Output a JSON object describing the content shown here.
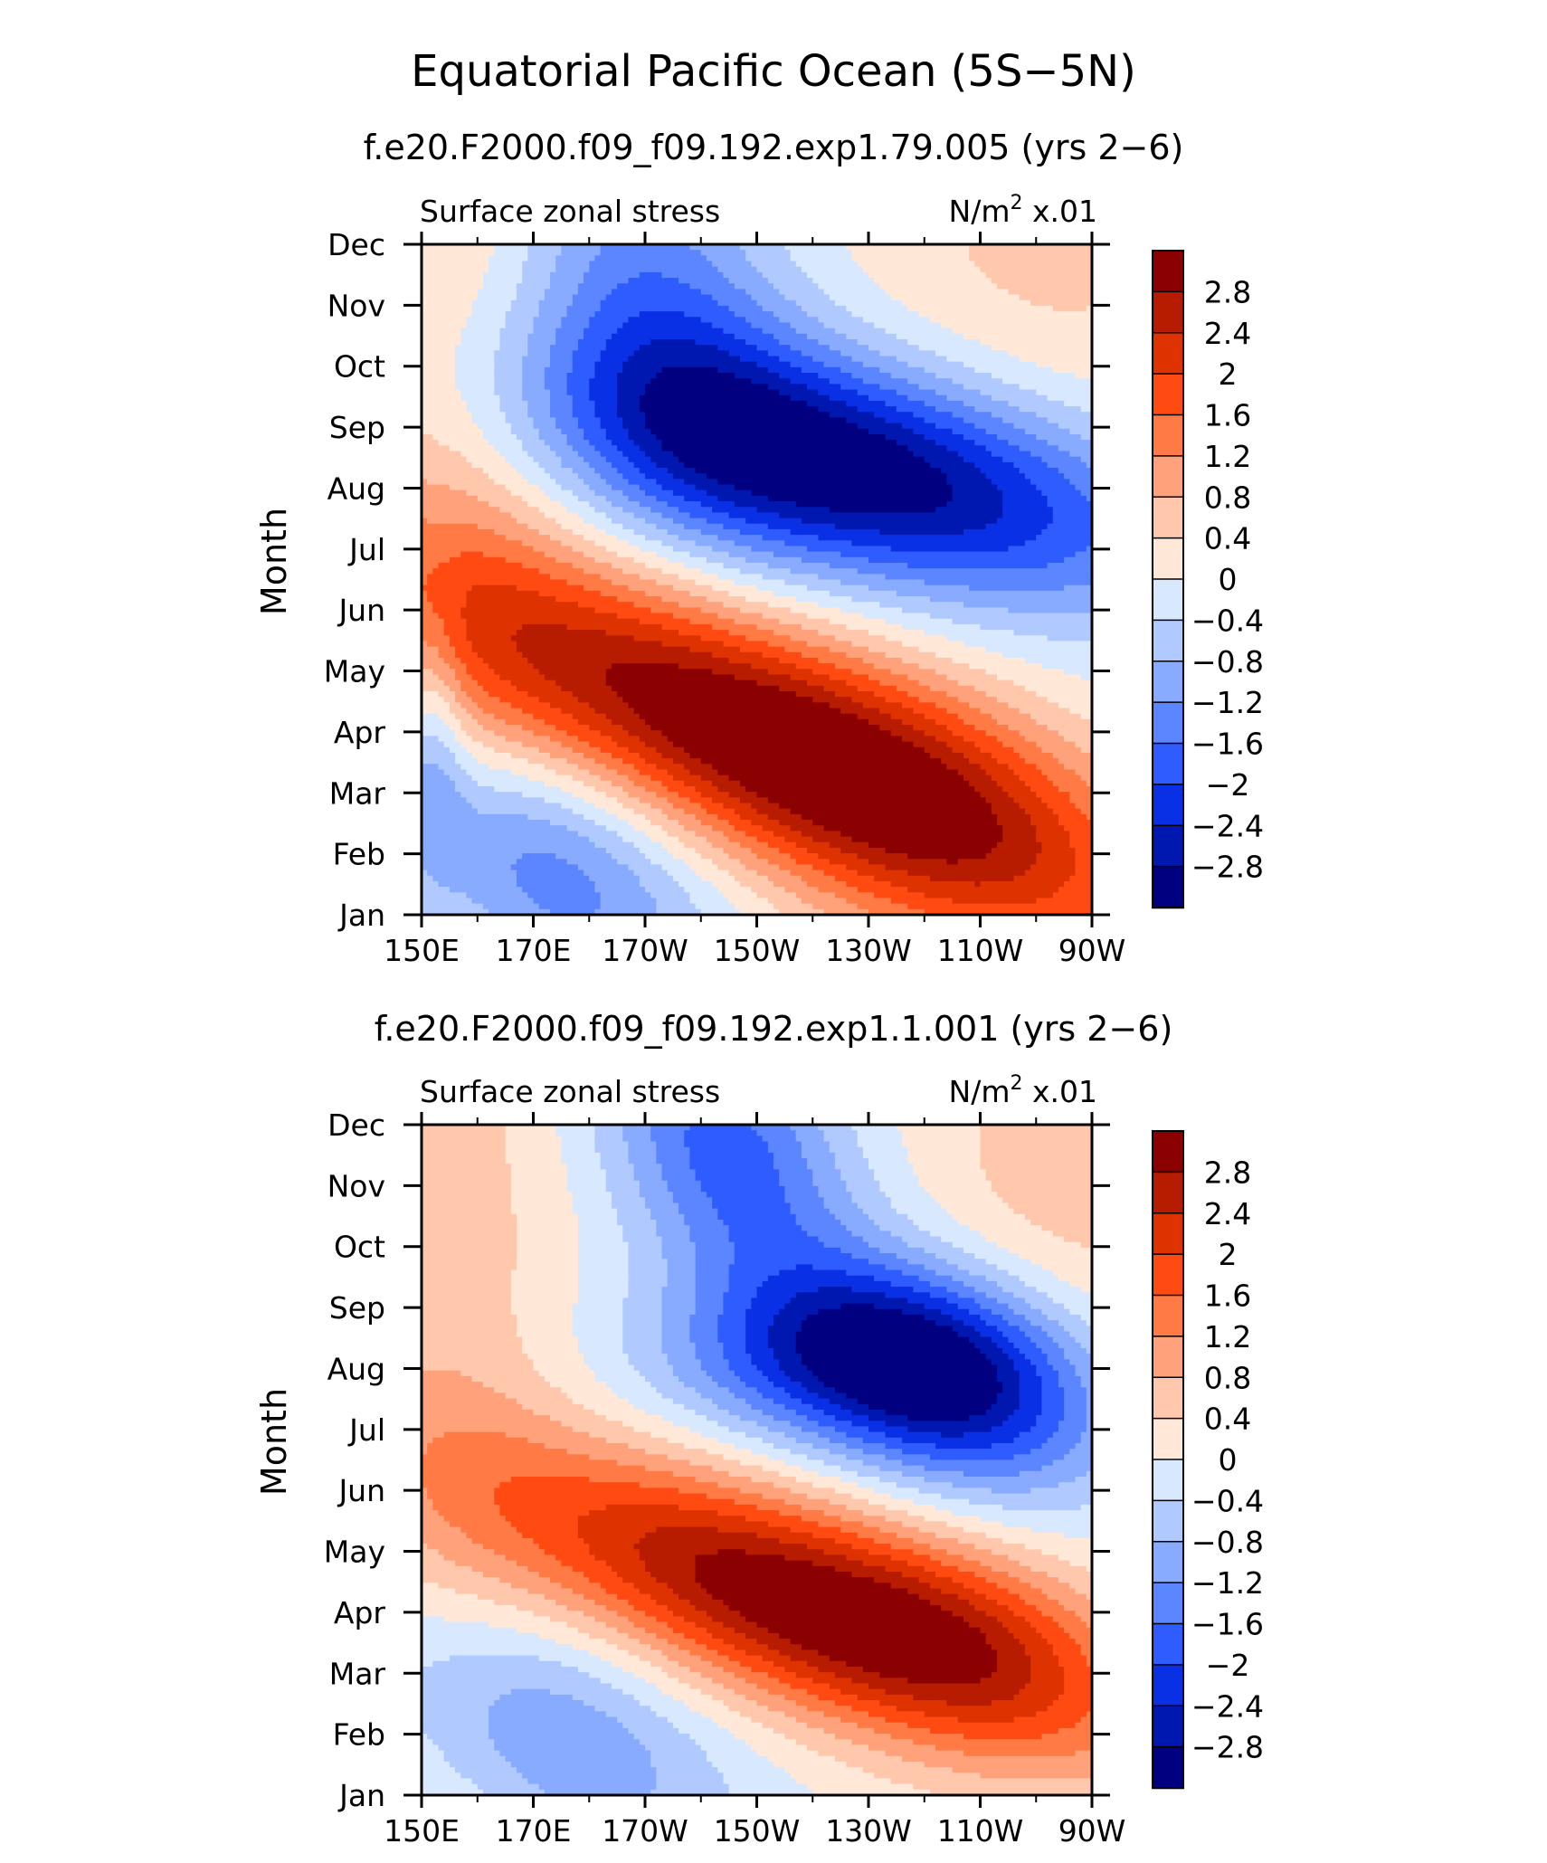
{
  "title": "Equatorial Pacific Ocean (5S−5N)",
  "chart_data": [
    {
      "type": "heatmap",
      "subtitle": "f.e20.F2000.f09_f09.192.exp1.79.005 (yrs 2−6)",
      "variable": "Surface zonal stress",
      "units_prefix": "N/m",
      "units_sup": "2",
      "units_suffix": " x.01",
      "ylabel": "Month",
      "xlim": [
        150,
        270
      ],
      "ylim": [
        0,
        11
      ],
      "x_tick_labels": [
        "150E",
        "170E",
        "170W",
        "150W",
        "130W",
        "110W",
        "90W"
      ],
      "y_tick_labels": [
        "Jan",
        "Feb",
        "Mar",
        "Apr",
        "May",
        "Jun",
        "Jul",
        "Aug",
        "Sep",
        "Oct",
        "Nov",
        "Dec"
      ],
      "features": [
        {
          "name": "west-positive-band",
          "value": 0.6,
          "x": 154,
          "y": 8.0,
          "sx": 16,
          "sy": 9,
          "rot": 0
        },
        {
          "name": "east-positive-ne",
          "value": 0.5,
          "x": 262,
          "y": 11.0,
          "sx": 24,
          "sy": 2.5,
          "rot": 0
        },
        {
          "name": "spring-positive-core",
          "value": 3.2,
          "x": 208,
          "y": 3.0,
          "sx": 44,
          "sy": 1.35,
          "rot": -0.035
        },
        {
          "name": "spring-positive-east-tail",
          "value": 1.0,
          "x": 245,
          "y": 1.4,
          "sx": 26,
          "sy": 1.6,
          "rot": -0.03
        },
        {
          "name": "summer-negative-core",
          "value": -3.2,
          "x": 228,
          "y": 7.3,
          "sx": 38,
          "sy": 1.25,
          "rot": -0.02
        },
        {
          "name": "upper-negative-tongue",
          "value": -1.4,
          "x": 192,
          "y": 10.0,
          "sx": 18,
          "sy": 2.2,
          "rot": -0.05
        },
        {
          "name": "winter-negative-sw",
          "value": -1.6,
          "x": 170,
          "y": 0.8,
          "sx": 22,
          "sy": 1.4,
          "rot": -0.03
        },
        {
          "name": "west-negative-strip",
          "value": -0.8,
          "x": 152,
          "y": 3.0,
          "sx": 4,
          "sy": 1.6,
          "rot": 0
        }
      ]
    },
    {
      "type": "heatmap",
      "subtitle": "f.e20.F2000.f09_f09.192.exp1.1.001 (yrs 2−6)",
      "variable": "Surface zonal stress",
      "units_prefix": "N/m",
      "units_sup": "2",
      "units_suffix": " x.01",
      "ylabel": "Month",
      "xlim": [
        150,
        270
      ],
      "ylim": [
        0,
        11
      ],
      "x_tick_labels": [
        "150E",
        "170E",
        "170W",
        "150W",
        "130W",
        "110W",
        "90W"
      ],
      "y_tick_labels": [
        "Jan",
        "Feb",
        "Mar",
        "Apr",
        "May",
        "Jun",
        "Jul",
        "Aug",
        "Sep",
        "Oct",
        "Nov",
        "Dec"
      ],
      "features": [
        {
          "name": "west-positive-band",
          "value": 0.6,
          "x": 154,
          "y": 8.0,
          "sx": 16,
          "sy": 9,
          "rot": 0
        },
        {
          "name": "east-positive-ne",
          "value": 0.6,
          "x": 265,
          "y": 10.0,
          "sx": 20,
          "sy": 2.5,
          "rot": 0
        },
        {
          "name": "spring-positive-core",
          "value": 3.1,
          "x": 216,
          "y": 3.2,
          "sx": 38,
          "sy": 1.2,
          "rot": -0.03
        },
        {
          "name": "spring-positive-east-tail",
          "value": 0.9,
          "x": 250,
          "y": 2.5,
          "sx": 20,
          "sy": 1.2,
          "rot": -0.02
        },
        {
          "name": "summer-negative-core",
          "value": -2.8,
          "x": 244,
          "y": 6.8,
          "sx": 20,
          "sy": 1.2,
          "rot": -0.02
        },
        {
          "name": "summer-negative-west",
          "value": -1.4,
          "x": 222,
          "y": 7.2,
          "sx": 24,
          "sy": 1.0,
          "rot": 0
        },
        {
          "name": "upper-negative-tongue",
          "value": -1.8,
          "x": 205,
          "y": 10.5,
          "sx": 16,
          "sy": 1.6,
          "rot": -0.04
        },
        {
          "name": "winter-negative-sw",
          "value": -1.3,
          "x": 170,
          "y": 1.1,
          "sx": 24,
          "sy": 1.4,
          "rot": -0.03
        }
      ]
    }
  ],
  "colorbar": {
    "levels": [
      "2.8",
      "2.4",
      "2",
      "1.6",
      "1.2",
      "0.8",
      "0.4",
      "0",
      "−0.4",
      "−0.8",
      "−1.2",
      "−1.6",
      "−2",
      "−2.4",
      "−2.8"
    ],
    "thresholds": [
      2.8,
      2.4,
      2.0,
      1.6,
      1.2,
      0.8,
      0.4,
      0.0,
      -0.4,
      -0.8,
      -1.2,
      -1.6,
      -2.0,
      -2.4,
      -2.8
    ],
    "colors": [
      "#8b0000",
      "#b71c00",
      "#de3200",
      "#ff4a12",
      "#ff7a45",
      "#ffa27b",
      "#ffc8ac",
      "#ffe8d8",
      "#d7e8ff",
      "#b0c9ff",
      "#88aaff",
      "#5b86ff",
      "#2f5cff",
      "#0a30e6",
      "#0018b0",
      "#000080"
    ]
  }
}
